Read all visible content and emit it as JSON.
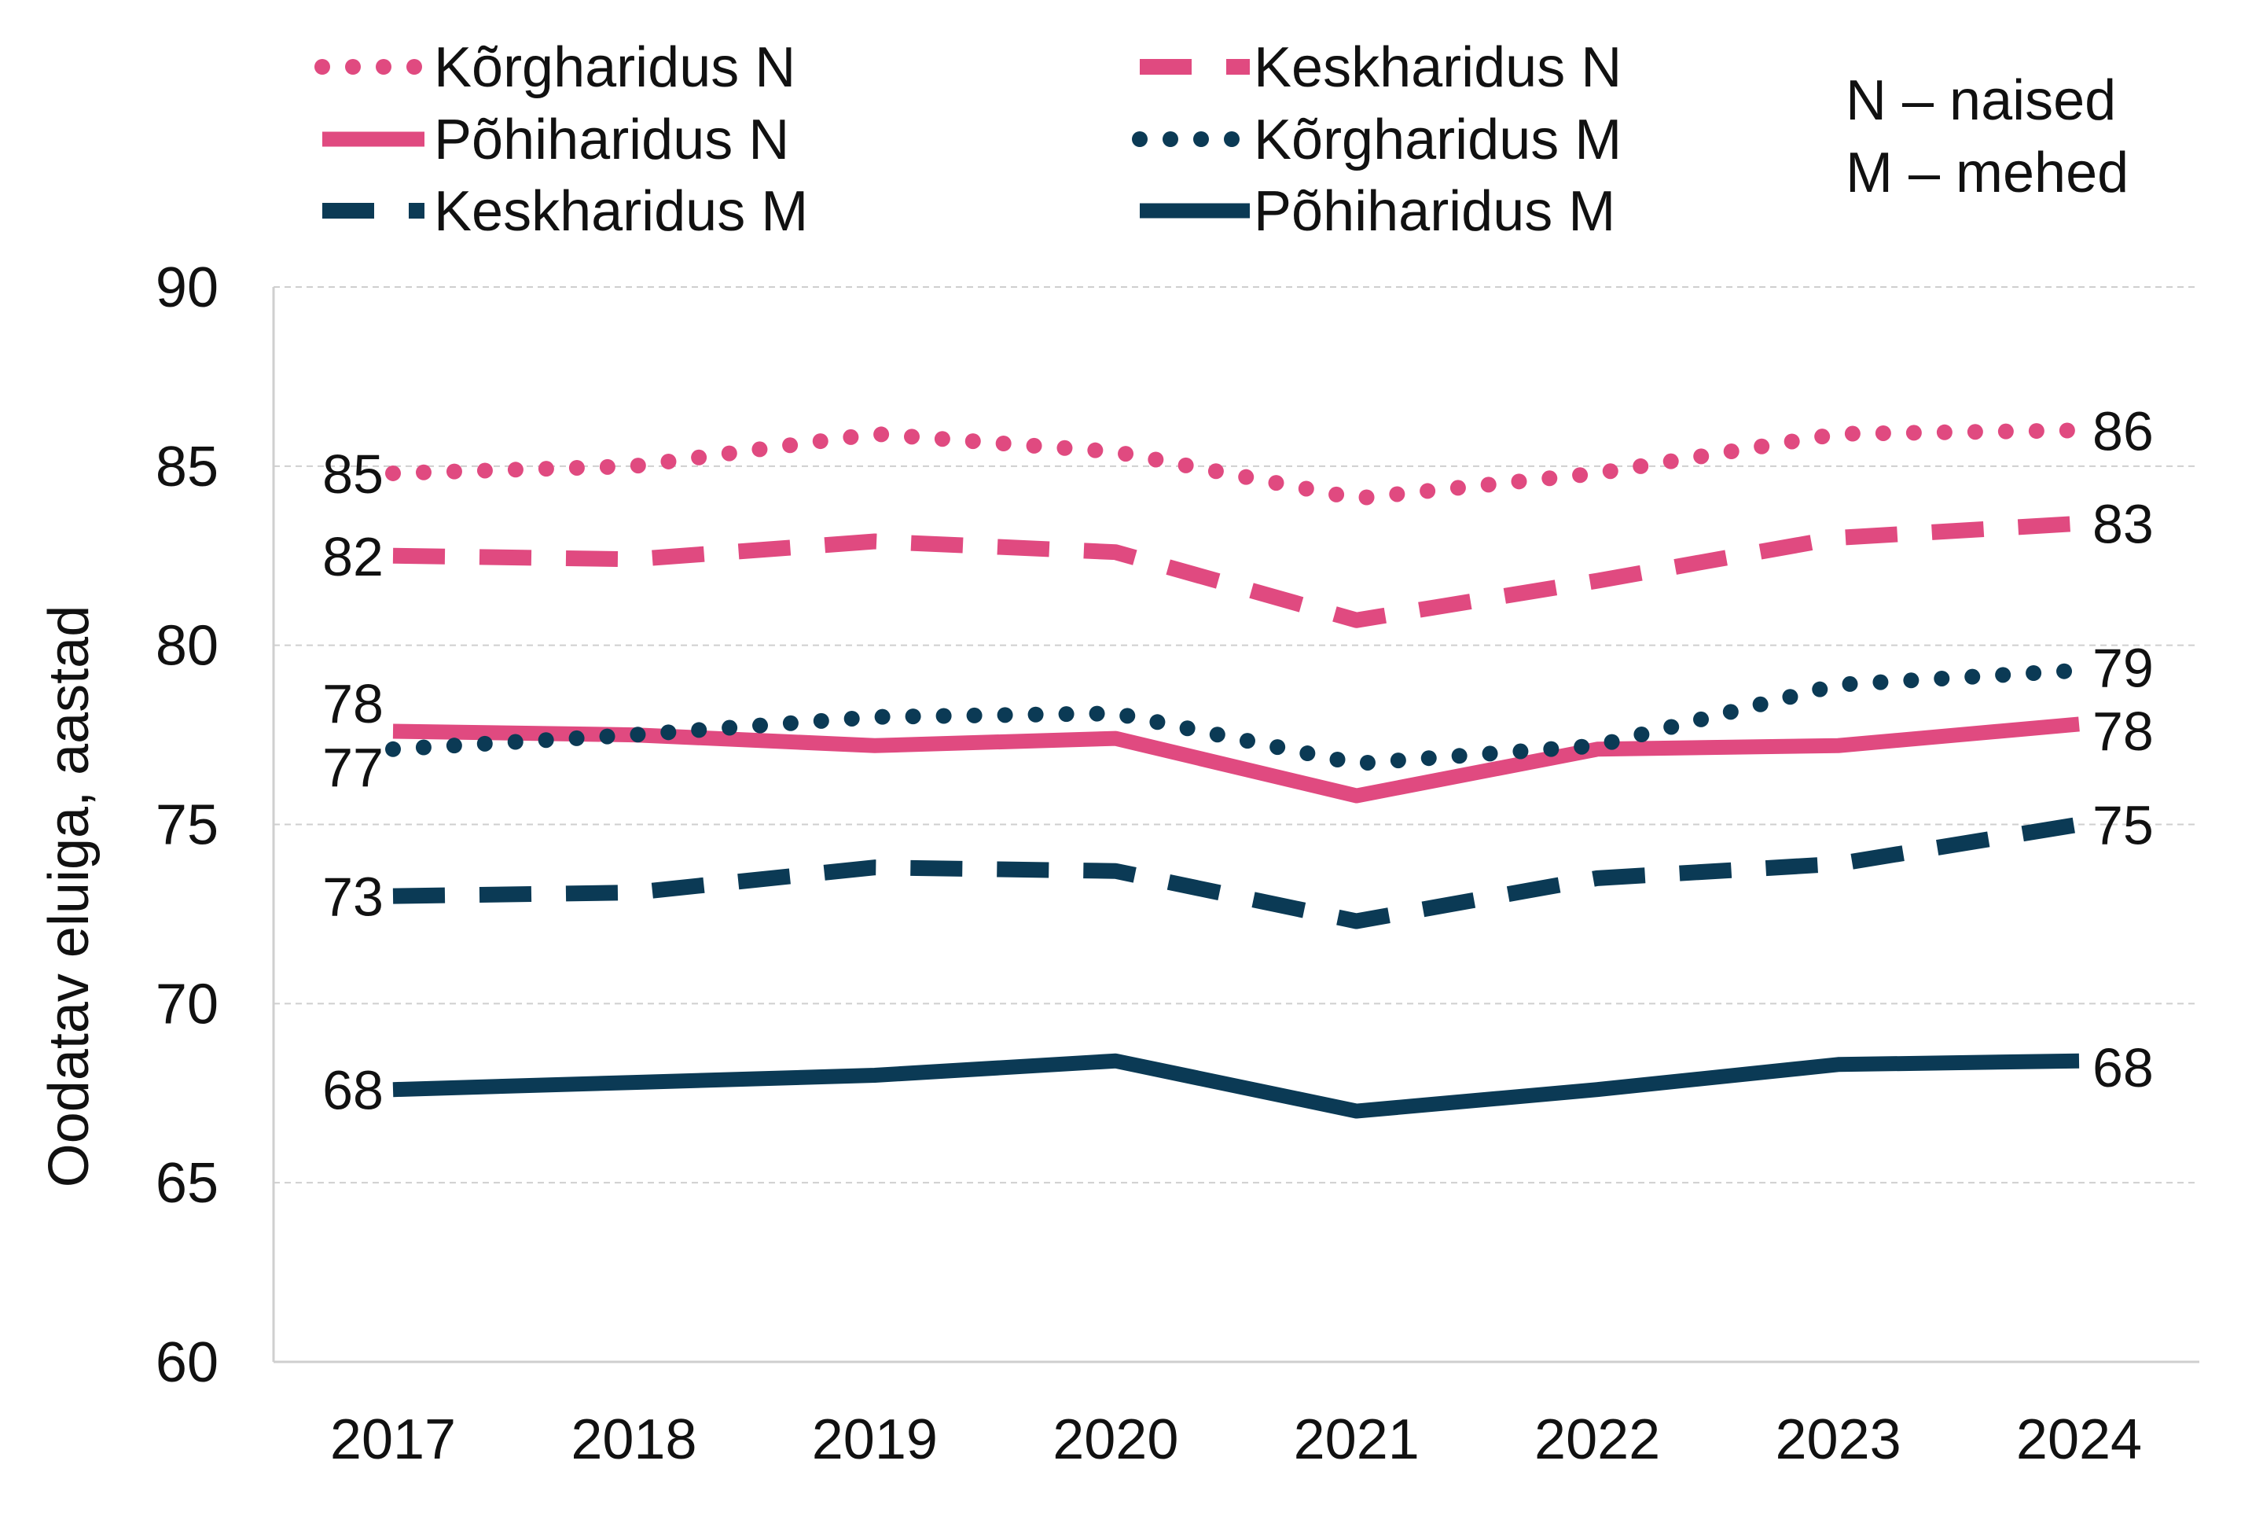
{
  "chart_data": {
    "type": "line",
    "title": "",
    "xlabel": "",
    "ylabel": "Oodatav eluiga, aastad",
    "categories": [
      "2017",
      "2018",
      "2019",
      "2020",
      "2021",
      "2022",
      "2023",
      "2024"
    ],
    "ylim": [
      60,
      90
    ],
    "yticks": [
      "60",
      "65",
      "70",
      "75",
      "80",
      "85",
      "90"
    ],
    "grid": true,
    "legend_position": "top",
    "colors": {
      "women": "#E04A80",
      "men": "#0B3A55"
    },
    "series": [
      {
        "name": "Kõrgharidus N",
        "style": "dotted",
        "color": "#E04A80",
        "values": [
          84.8,
          85.0,
          85.9,
          85.4,
          84.1,
          84.8,
          85.9,
          86.0
        ],
        "start_label": "85",
        "end_label": "86"
      },
      {
        "name": "Keskharidus N",
        "style": "dashed",
        "color": "#E04A80",
        "values": [
          82.5,
          82.4,
          82.9,
          82.6,
          80.7,
          81.8,
          83.0,
          83.4
        ],
        "start_label": "82",
        "end_label": "83"
      },
      {
        "name": "Põhiharidus N",
        "style": "solid",
        "color": "#E04A80",
        "values": [
          77.6,
          77.5,
          77.2,
          77.4,
          75.8,
          77.1,
          77.2,
          77.8
        ],
        "start_label": "78",
        "end_label": "78"
      },
      {
        "name": "Kõrgharidus M",
        "style": "dotted",
        "color": "#0B3A55",
        "values": [
          77.1,
          77.5,
          78.0,
          78.1,
          76.7,
          77.2,
          78.9,
          79.3
        ],
        "start_label": "77",
        "end_label": "79"
      },
      {
        "name": "Keskharidus M",
        "style": "dashed",
        "color": "#0B3A55",
        "values": [
          73.0,
          73.1,
          73.8,
          73.7,
          72.3,
          73.5,
          73.9,
          75.0
        ],
        "start_label": "73",
        "end_label": "75"
      },
      {
        "name": "Põhiharidus M",
        "style": "solid",
        "color": "#0B3A55",
        "values": [
          67.6,
          67.8,
          68.0,
          68.4,
          67.0,
          67.6,
          68.3,
          68.4
        ],
        "start_label": "68",
        "end_label": "68"
      }
    ],
    "legend_note": [
      "N – naised",
      "M – mehed"
    ]
  }
}
